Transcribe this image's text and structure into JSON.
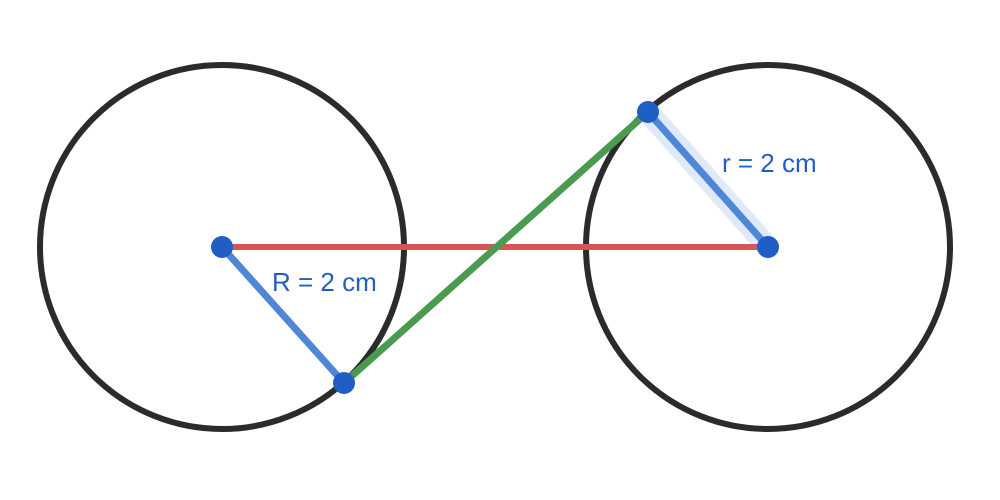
{
  "colors": {
    "circle_stroke": "#2b2b2b",
    "center_line": "#d95454",
    "tangent_line": "#4a9a4f",
    "radius_line": "#4f86d6",
    "point_fill": "#1f5fc4",
    "label_text": "#1f5fc4"
  },
  "labels": {
    "left_radius": "R = 2 cm",
    "right_radius": "r = 2 cm"
  }
}
